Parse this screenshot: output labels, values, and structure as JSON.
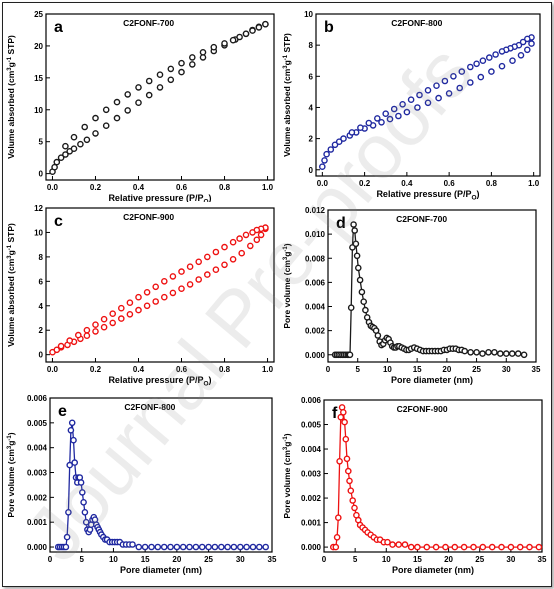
{
  "watermark": "Journal Pre-proofs",
  "chart_data": [
    {
      "panel": "a",
      "type": "scatter",
      "title": "C2FONF-700",
      "xlabel": "Relative pressure (P/P",
      "xlabel_sub": "O",
      "xlabel_end": ")",
      "ylabel": "Volume absorbed (cm",
      "ylabel_sup1": "3",
      "ylabel_mid": "g",
      "ylabel_sup2": "-1",
      "ylabel_end": " STP)",
      "xlim": [
        -0.03,
        1.03
      ],
      "ylim": [
        -1,
        25
      ],
      "xticks": [
        0.0,
        0.2,
        0.4,
        0.6,
        0.8,
        1.0
      ],
      "xtick_labels": [
        "0.0",
        "0.2",
        "0.4",
        "0.6",
        "0.8",
        "1.0"
      ],
      "yticks": [
        0,
        5,
        10,
        15,
        20,
        25
      ],
      "ytick_labels": [
        "0",
        "5",
        "10",
        "15",
        "20",
        "25"
      ],
      "color": "#1a1a1a",
      "series": [
        {
          "x": [
            0.0,
            0.01,
            0.02,
            0.04,
            0.06,
            0.08,
            0.1,
            0.13,
            0.16,
            0.2,
            0.25,
            0.3,
            0.35,
            0.4,
            0.45,
            0.5,
            0.55,
            0.6,
            0.65,
            0.7,
            0.75,
            0.8,
            0.85,
            0.9,
            0.93,
            0.96,
            0.99
          ],
          "y": [
            0.3,
            1.0,
            1.8,
            2.5,
            3.0,
            3.5,
            3.9,
            4.6,
            5.3,
            6.3,
            7.5,
            8.7,
            9.9,
            11.1,
            12.3,
            13.5,
            14.7,
            15.9,
            17.1,
            18.2,
            19.2,
            20.1,
            21.0,
            21.9,
            22.5,
            23.0,
            23.4
          ]
        },
        {
          "x": [
            0.99,
            0.96,
            0.93,
            0.9,
            0.87,
            0.84,
            0.8,
            0.75,
            0.7,
            0.65,
            0.6,
            0.55,
            0.5,
            0.45,
            0.4,
            0.35,
            0.3,
            0.25,
            0.2,
            0.15,
            0.1,
            0.06
          ],
          "y": [
            23.4,
            22.9,
            22.4,
            21.9,
            21.4,
            20.9,
            20.4,
            19.8,
            19.0,
            18.2,
            17.3,
            16.4,
            15.5,
            14.5,
            13.5,
            12.4,
            11.2,
            10.0,
            8.7,
            7.3,
            5.7,
            4.3
          ]
        }
      ]
    },
    {
      "panel": "b",
      "type": "scatter",
      "title": "C2FONF-800",
      "xlabel": "Relative pressure (P/P",
      "xlabel_sub": "O",
      "xlabel_end": ")",
      "ylabel": "Volume absorbed (cm",
      "ylabel_sup1": "3",
      "ylabel_mid": "g",
      "ylabel_sup2": "-1",
      "ylabel_end": " STP)",
      "xlim": [
        -0.03,
        1.03
      ],
      "ylim": [
        -0.4,
        10
      ],
      "xticks": [
        0.0,
        0.2,
        0.4,
        0.6,
        0.8,
        1.0
      ],
      "xtick_labels": [
        "0.0",
        "0.2",
        "0.4",
        "0.6",
        "0.8",
        "1.0"
      ],
      "yticks": [
        0,
        2,
        4,
        6,
        8,
        10
      ],
      "ytick_labels": [
        "0",
        "2",
        "4",
        "6",
        "8",
        "10"
      ],
      "color": "#1f28a0",
      "series": [
        {
          "x": [
            0.0,
            0.01,
            0.02,
            0.04,
            0.06,
            0.08,
            0.1,
            0.13,
            0.16,
            0.2,
            0.24,
            0.28,
            0.32,
            0.36,
            0.4,
            0.45,
            0.5,
            0.55,
            0.6,
            0.65,
            0.7,
            0.75,
            0.8,
            0.85,
            0.9,
            0.94,
            0.97,
            0.99
          ],
          "y": [
            0.2,
            0.6,
            1.0,
            1.3,
            1.6,
            1.8,
            2.0,
            2.2,
            2.4,
            2.65,
            2.85,
            3.05,
            3.25,
            3.45,
            3.7,
            4.0,
            4.3,
            4.6,
            4.9,
            5.25,
            5.6,
            5.95,
            6.3,
            6.65,
            7.0,
            7.35,
            7.7,
            8.1
          ]
        },
        {
          "x": [
            0.99,
            0.97,
            0.95,
            0.93,
            0.91,
            0.89,
            0.87,
            0.85,
            0.82,
            0.79,
            0.76,
            0.73,
            0.7,
            0.66,
            0.62,
            0.58,
            0.54,
            0.5,
            0.46,
            0.42,
            0.38,
            0.34,
            0.3,
            0.26,
            0.22,
            0.18,
            0.14
          ],
          "y": [
            8.5,
            8.4,
            8.2,
            8.0,
            7.9,
            7.8,
            7.7,
            7.6,
            7.4,
            7.2,
            7.0,
            6.8,
            6.6,
            6.3,
            6.0,
            5.7,
            5.4,
            5.1,
            4.8,
            4.5,
            4.2,
            3.9,
            3.6,
            3.3,
            3.0,
            2.7,
            2.4
          ]
        }
      ]
    },
    {
      "panel": "c",
      "type": "scatter",
      "title": "C2FONF-900",
      "xlabel": "Relative pressure (P/P",
      "xlabel_sub": "O",
      "xlabel_end": ")",
      "ylabel": "Volume absorbed (cm",
      "ylabel_sup1": "3",
      "ylabel_mid": "g",
      "ylabel_sup2": "-1",
      "ylabel_end": " STP)",
      "xlim": [
        -0.03,
        1.03
      ],
      "ylim": [
        -0.6,
        12
      ],
      "xticks": [
        0.0,
        0.2,
        0.4,
        0.6,
        0.8,
        1.0
      ],
      "xtick_labels": [
        "0.0",
        "0.2",
        "0.4",
        "0.6",
        "0.8",
        "1.0"
      ],
      "yticks": [
        0,
        2,
        4,
        6,
        8,
        10,
        12
      ],
      "ytick_labels": [
        "0",
        "2",
        "4",
        "6",
        "8",
        "10",
        "12"
      ],
      "color": "#ee1111",
      "series": [
        {
          "x": [
            0.0,
            0.02,
            0.04,
            0.07,
            0.1,
            0.13,
            0.16,
            0.2,
            0.24,
            0.28,
            0.32,
            0.36,
            0.4,
            0.44,
            0.48,
            0.52,
            0.56,
            0.6,
            0.64,
            0.68,
            0.72,
            0.76,
            0.8,
            0.84,
            0.88,
            0.92,
            0.95,
            0.97,
            0.99
          ],
          "y": [
            0.2,
            0.4,
            0.6,
            0.8,
            1.05,
            1.3,
            1.55,
            1.9,
            2.25,
            2.6,
            2.95,
            3.3,
            3.65,
            4.0,
            4.35,
            4.7,
            5.05,
            5.4,
            5.75,
            6.15,
            6.55,
            6.95,
            7.35,
            7.8,
            8.3,
            8.9,
            9.4,
            9.8,
            10.3
          ]
        },
        {
          "x": [
            0.99,
            0.97,
            0.95,
            0.93,
            0.9,
            0.87,
            0.84,
            0.8,
            0.76,
            0.72,
            0.68,
            0.64,
            0.6,
            0.56,
            0.52,
            0.48,
            0.44,
            0.4,
            0.36,
            0.32,
            0.28,
            0.24,
            0.2,
            0.16,
            0.12,
            0.08,
            0.04
          ],
          "y": [
            10.4,
            10.3,
            10.2,
            10.0,
            9.8,
            9.5,
            9.2,
            8.8,
            8.4,
            8.0,
            7.6,
            7.2,
            6.8,
            6.4,
            6.0,
            5.55,
            5.1,
            4.7,
            4.25,
            3.8,
            3.35,
            2.9,
            2.45,
            2.0,
            1.6,
            1.15,
            0.7
          ]
        }
      ]
    },
    {
      "panel": "d",
      "type": "line",
      "title": "C2FONF-700",
      "xlabel": "Pore diameter (nm)",
      "ylabel": "Pore volume (cm",
      "ylabel_sup1": "3",
      "ylabel_mid": "g",
      "ylabel_sup2": "-1",
      "ylabel_end": ")",
      "xlim": [
        0,
        35
      ],
      "ylim": [
        -0.0006,
        0.012
      ],
      "xticks": [
        0,
        5,
        10,
        15,
        20,
        25,
        30,
        35
      ],
      "xtick_labels": [
        "0",
        "5",
        "10",
        "15",
        "20",
        "25",
        "30",
        "35"
      ],
      "yticks": [
        0.0,
        0.002,
        0.004,
        0.006,
        0.008,
        0.01,
        0.012
      ],
      "ytick_labels": [
        "0.000",
        "0.002",
        "0.004",
        "0.006",
        "0.008",
        "0.010",
        "0.012"
      ],
      "color": "#1a1a1a",
      "series": [
        {
          "x": [
            1.2,
            1.5,
            1.8,
            2.1,
            2.4,
            2.7,
            3.0,
            3.3,
            3.5,
            3.7,
            3.9,
            4.1,
            4.3,
            4.5,
            4.7,
            4.9,
            5.1,
            5.4,
            5.7,
            6.0,
            6.3,
            6.6,
            6.9,
            7.2,
            7.5,
            7.8,
            8.1,
            8.4,
            8.7,
            9.0,
            9.3,
            9.6,
            9.9,
            10.2,
            10.5,
            10.8,
            11.1,
            11.4,
            11.7,
            12.0,
            12.4,
            12.8,
            13.2,
            13.6,
            14.0,
            14.5,
            15.0,
            15.5,
            16.0,
            16.5,
            17.0,
            17.5,
            18.0,
            18.5,
            19.0,
            19.5,
            20.0,
            20.5,
            21.0,
            21.5,
            22.0,
            22.5,
            23.0,
            24.0,
            25.0,
            26.0,
            27.0,
            28.0,
            29.0,
            30.0,
            31.0,
            32.0,
            33.0
          ],
          "y": [
            0.0,
            0.0,
            0.0,
            0.0,
            0.0,
            0.0,
            0.0,
            0.0,
            0.0,
            0.0,
            0.0039,
            0.0089,
            0.0108,
            0.0103,
            0.0092,
            0.0082,
            0.0072,
            0.0062,
            0.0052,
            0.0044,
            0.0037,
            0.0031,
            0.0027,
            0.0024,
            0.0023,
            0.0022,
            0.002,
            0.0016,
            0.0011,
            0.0008,
            0.0009,
            0.0012,
            0.0014,
            0.0013,
            0.001,
            0.0007,
            0.0006,
            0.0006,
            0.0007,
            0.0007,
            0.0006,
            0.0005,
            0.0004,
            0.0004,
            0.0005,
            0.0006,
            0.0005,
            0.0004,
            0.0003,
            0.0003,
            0.0003,
            0.0003,
            0.0003,
            0.0003,
            0.0003,
            0.0004,
            0.0004,
            0.0005,
            0.0005,
            0.0005,
            0.0004,
            0.0004,
            0.0003,
            0.0002,
            0.0002,
            0.0001,
            0.0002,
            0.0002,
            0.0001,
            0.0001,
            0.0001,
            0.0001,
            0.0
          ]
        }
      ]
    },
    {
      "panel": "e",
      "type": "line",
      "title": "C2FONF-800",
      "xlabel": "Pore diameter (nm)",
      "ylabel": "Pore volume (cm",
      "ylabel_sup1": "3",
      "ylabel_mid": "g",
      "ylabel_sup2": "-1",
      "ylabel_end": ")",
      "xlim": [
        0,
        35
      ],
      "ylim": [
        -0.0002,
        0.006
      ],
      "xticks": [
        0,
        5,
        10,
        15,
        20,
        25,
        30,
        35
      ],
      "xtick_labels": [
        "0",
        "5",
        "10",
        "15",
        "20",
        "25",
        "30",
        "35"
      ],
      "yticks": [
        0.0,
        0.001,
        0.002,
        0.003,
        0.004,
        0.005,
        0.006
      ],
      "ytick_labels": [
        "0.000",
        "0.001",
        "0.002",
        "0.003",
        "0.004",
        "0.005",
        "0.006"
      ],
      "color": "#1f28a0",
      "series": [
        {
          "x": [
            1.3,
            1.6,
            1.9,
            2.2,
            2.5,
            2.7,
            2.9,
            3.1,
            3.3,
            3.5,
            3.7,
            3.9,
            4.1,
            4.3,
            4.5,
            4.7,
            4.9,
            5.1,
            5.3,
            5.5,
            5.7,
            5.9,
            6.1,
            6.3,
            6.5,
            6.7,
            6.9,
            7.1,
            7.3,
            7.5,
            7.7,
            7.9,
            8.1,
            8.4,
            8.7,
            9.0,
            9.4,
            9.8,
            10.2,
            10.6,
            11.0,
            11.5,
            12.0,
            12.5,
            13.0,
            14.0,
            15.0,
            16.0,
            17.0,
            18.0,
            19.0,
            20.0,
            21.0,
            22.0,
            23.0,
            24.0,
            25.0,
            26.0,
            27.0,
            28.0,
            29.0,
            30.0,
            31.0,
            32.0,
            33.0,
            34.0
          ],
          "y": [
            0.0,
            0.0,
            0.0,
            0.0,
            0.0,
            0.0004,
            0.0014,
            0.0033,
            0.0047,
            0.005,
            0.0043,
            0.0034,
            0.0028,
            0.0026,
            0.0028,
            0.0028,
            0.0026,
            0.0022,
            0.0018,
            0.0014,
            0.001,
            0.0007,
            0.0006,
            0.0007,
            0.0009,
            0.0011,
            0.0012,
            0.0011,
            0.0009,
            0.0008,
            0.0007,
            0.0006,
            0.0005,
            0.0004,
            0.0003,
            0.0003,
            0.0002,
            0.0002,
            0.0002,
            0.0002,
            0.0002,
            0.0001,
            0.0001,
            0.0001,
            0.0001,
            0.0,
            0.0,
            0.0,
            0.0,
            0.0,
            0.0,
            0.0,
            0.0,
            0.0,
            0.0,
            0.0,
            0.0,
            0.0,
            0.0,
            0.0,
            0.0,
            0.0,
            0.0,
            0.0,
            0.0,
            0.0
          ]
        }
      ]
    },
    {
      "panel": "f",
      "type": "line",
      "title": "C2FONF-900",
      "xlabel": "Pore diameter (nm)",
      "ylabel": "Pore volume (cm",
      "ylabel_sup1": "3",
      "ylabel_mid": "g",
      "ylabel_sup2": "-1",
      "ylabel_end": ")",
      "xlim": [
        0,
        35
      ],
      "ylim": [
        -0.0002,
        0.006
      ],
      "xticks": [
        0,
        5,
        10,
        15,
        20,
        25,
        30,
        35
      ],
      "xtick_labels": [
        "0",
        "5",
        "10",
        "15",
        "20",
        "25",
        "30",
        "35"
      ],
      "yticks": [
        0.0,
        0.001,
        0.002,
        0.003,
        0.004,
        0.005,
        0.006
      ],
      "ytick_labels": [
        "0.000",
        "0.001",
        "0.002",
        "0.003",
        "0.004",
        "0.005",
        "0.006"
      ],
      "color": "#ee1111",
      "series": [
        {
          "x": [
            1.5,
            1.9,
            2.1,
            2.3,
            2.5,
            2.7,
            2.9,
            3.1,
            3.3,
            3.5,
            3.7,
            3.9,
            4.1,
            4.3,
            4.6,
            4.9,
            5.2,
            5.5,
            5.8,
            6.2,
            6.6,
            7.0,
            7.5,
            8.0,
            8.5,
            9.0,
            9.6,
            10.2,
            11.0,
            12.0,
            13.0,
            14.0,
            15.0,
            16.5,
            18.0,
            19.5,
            21.0,
            22.5,
            24.0,
            25.5,
            27.0,
            28.5,
            30.0,
            31.5,
            33.0,
            34.5
          ],
          "y": [
            0.0,
            0.0,
            0.0004,
            0.0012,
            0.0035,
            0.0053,
            0.0057,
            0.0055,
            0.0051,
            0.0044,
            0.0036,
            0.0031,
            0.0027,
            0.0023,
            0.0019,
            0.0016,
            0.0013,
            0.0011,
            0.0009,
            0.0008,
            0.0007,
            0.0006,
            0.0005,
            0.0004,
            0.0003,
            0.0003,
            0.0002,
            0.0002,
            0.0001,
            0.0001,
            0.0001,
            0.0,
            0.0,
            0.0,
            0.0,
            0.0,
            0.0,
            0.0,
            0.0,
            0.0,
            0.0,
            0.0,
            0.0,
            0.0,
            0.0,
            0.0
          ]
        }
      ]
    }
  ]
}
